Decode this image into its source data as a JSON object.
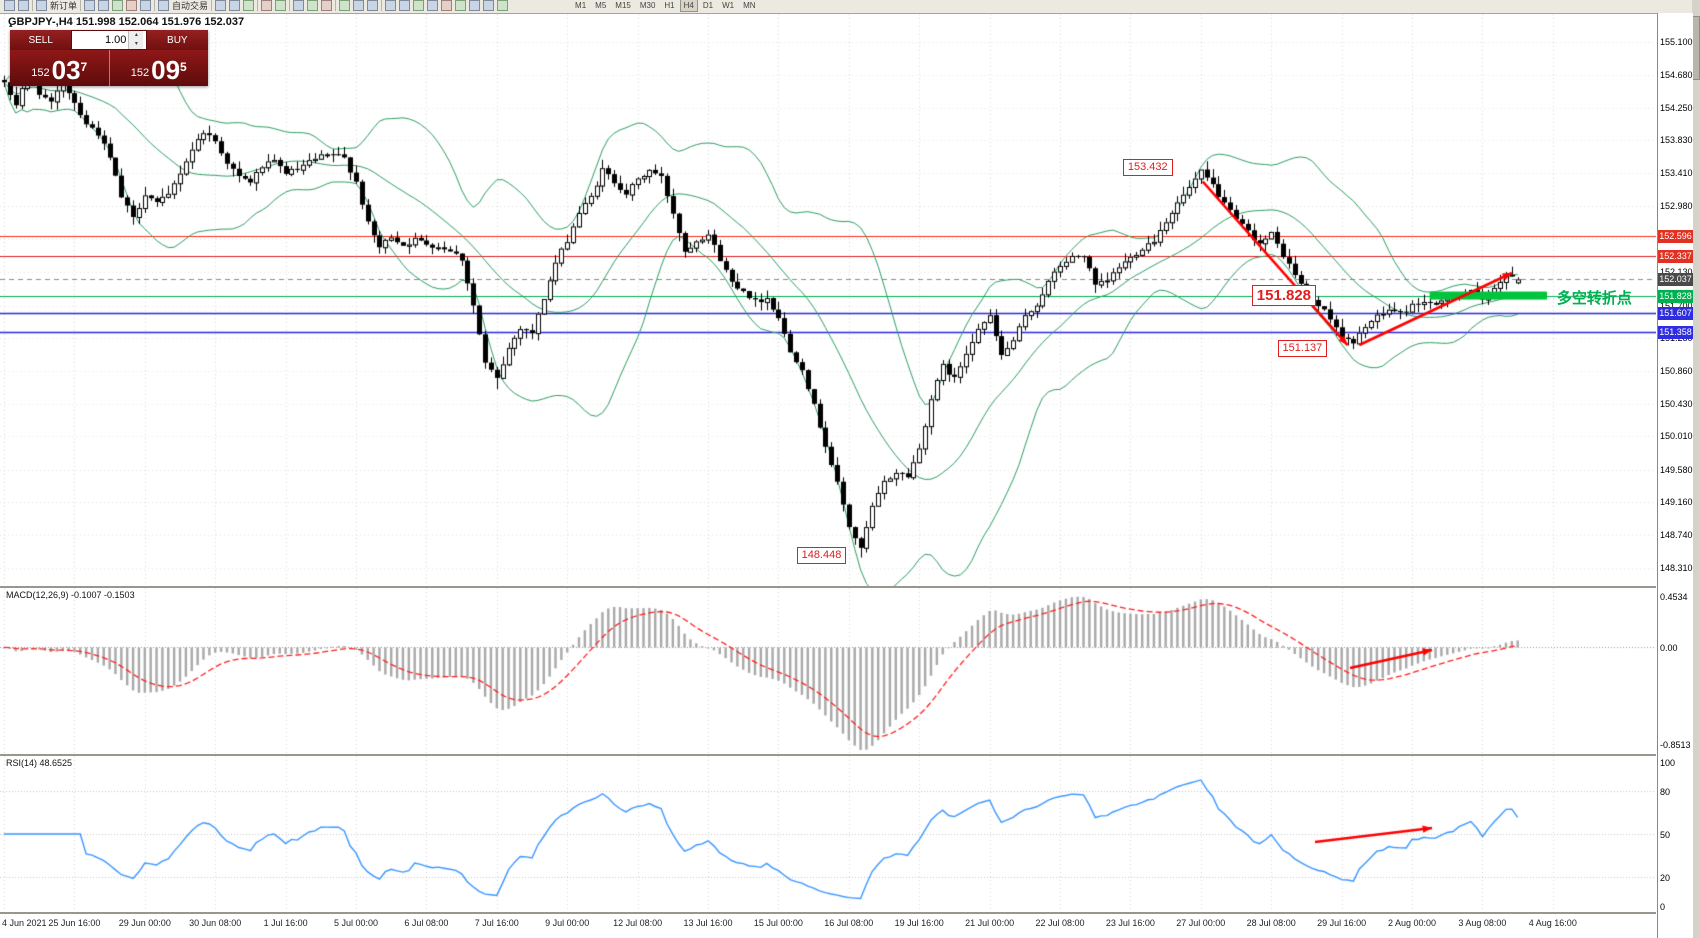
{
  "toolbar": {
    "items": [
      {
        "name": "new-chart-icon"
      },
      {
        "name": "chart-profiles-icon"
      },
      {
        "sep": true
      },
      {
        "name": "new-order-icon",
        "label": "新订单"
      },
      {
        "sep": true
      },
      {
        "name": "market-watch-icon"
      },
      {
        "name": "data-window-icon"
      },
      {
        "name": "navigator-icon"
      },
      {
        "name": "terminal-icon"
      },
      {
        "name": "strategy-tester-icon"
      },
      {
        "sep": true
      },
      {
        "name": "autotrading-icon",
        "label": "自动交易"
      },
      {
        "sep": true
      },
      {
        "name": "bar-chart-icon"
      },
      {
        "name": "candlestick-chart-icon"
      },
      {
        "name": "line-chart-icon"
      },
      {
        "sep": true
      },
      {
        "name": "zoom-in-icon"
      },
      {
        "name": "zoom-out-icon"
      },
      {
        "sep": true
      },
      {
        "name": "tile-windows-icon"
      },
      {
        "name": "auto-scroll-icon"
      },
      {
        "name": "chart-shift-icon"
      },
      {
        "sep": true
      },
      {
        "name": "indicators-icon"
      },
      {
        "name": "periods-icon"
      },
      {
        "name": "templates-icon"
      },
      {
        "sep": true
      },
      {
        "name": "cursor-icon"
      },
      {
        "name": "crosshair-icon"
      },
      {
        "name": "vertical-line-icon"
      },
      {
        "name": "horizontal-line-icon"
      },
      {
        "name": "trendline-icon"
      },
      {
        "name": "equidistant-channel-icon"
      },
      {
        "name": "fibonacci-icon"
      },
      {
        "name": "text-label-icon"
      },
      {
        "name": "arrows-icon"
      }
    ],
    "timeframes": [
      "M1",
      "M5",
      "M15",
      "M30",
      "H1",
      "H4",
      "D1",
      "W1",
      "MN"
    ],
    "active_timeframe": "H4"
  },
  "chart_header": "GBPJPY-,H4  151.998 152.064 151.976 152.037",
  "trade_panel": {
    "sell_label": "SELL",
    "buy_label": "BUY",
    "volume": "1.00",
    "spin_up": "▴",
    "spin_down": "▾",
    "collapse_glyph": "▴",
    "sell_prefix": "152",
    "sell_big": "03",
    "sell_sup": "7",
    "buy_prefix": "152",
    "buy_big": "09",
    "buy_sup": "5"
  },
  "annotations": {
    "swing_high": "153.432",
    "support_price": "151.828",
    "pullback_low": "151.137",
    "major_low": "148.448",
    "turning_label": "多空转折点"
  },
  "price_axis": {
    "ticks": [
      "155.100",
      "154.680",
      "154.250",
      "153.830",
      "153.410",
      "152.980",
      "152.560",
      "152.130",
      "151.700",
      "151.280",
      "150.860",
      "150.430",
      "150.010",
      "149.580",
      "149.160",
      "148.740",
      "148.310"
    ],
    "tags": [
      {
        "text": "152.596",
        "price": 152.596,
        "bg": "#e03222"
      },
      {
        "text": "152.337",
        "price": 152.337,
        "bg": "#e03222"
      },
      {
        "text": "152.037",
        "price": 152.037,
        "bg": "#4a4a4a"
      },
      {
        "text": "151.828",
        "price": 151.828,
        "bg": "#00b050"
      },
      {
        "text": "151.607",
        "price": 151.607,
        "bg": "#2e2ee0"
      },
      {
        "text": "151.358",
        "price": 151.358,
        "bg": "#2e2ee0"
      }
    ]
  },
  "hlines": [
    {
      "price": 152.596,
      "color": "#ff2a1a",
      "style": "solid",
      "width": 1
    },
    {
      "price": 152.337,
      "color": "#e02020",
      "style": "solid",
      "width": 1
    },
    {
      "price": 152.037,
      "color": "#8a8a8a",
      "style": "dash",
      "width": 1
    },
    {
      "price": 151.828,
      "color": "#00b050",
      "style": "solid",
      "width": 1
    },
    {
      "price": 151.607,
      "color": "#2a2ae0",
      "style": "solid",
      "width": 1.4
    },
    {
      "price": 151.358,
      "color": "#2a2ae0",
      "style": "solid",
      "width": 1.4
    }
  ],
  "macd": {
    "label": "MACD(12,26,9) -0.1007 -0.1503",
    "scale": [
      {
        "text": "0.4534",
        "value": 0.4534
      },
      {
        "text": "0.00",
        "value": 0
      },
      {
        "text": "-0.8513",
        "value": -0.8513
      }
    ]
  },
  "rsi": {
    "label": "RSI(14) 48.6525",
    "scale": [
      {
        "text": "100",
        "value": 100
      },
      {
        "text": "80",
        "value": 80
      },
      {
        "text": "50",
        "value": 50
      },
      {
        "text": "20",
        "value": 20
      },
      {
        "text": "0",
        "value": 0
      }
    ],
    "levels": [
      80,
      50,
      20
    ]
  },
  "time_axis": [
    "4 Jun 2021",
    "25 Jun 16:00",
    "29 Jun 00:00",
    "30 Jun 08:00",
    "1 Jul 16:00",
    "5 Jul 00:00",
    "6 Jul 08:00",
    "7 Jul 16:00",
    "9 Jul 00:00",
    "12 Jul 08:00",
    "13 Jul 16:00",
    "15 Jul 00:00",
    "16 Jul 08:00",
    "19 Jul 16:00",
    "21 Jul 00:00",
    "22 Jul 08:00",
    "23 Jul 16:00",
    "27 Jul 00:00",
    "28 Jul 08:00",
    "29 Jul 16:00",
    "2 Aug 00:00",
    "3 Aug 08:00",
    "4 Aug 16:00"
  ],
  "chart_data": {
    "type": "candlestick",
    "symbol": "GBPJPY-",
    "timeframe": "H4",
    "ohlc_current": {
      "open": 151.998,
      "high": 152.064,
      "low": 151.976,
      "close": 152.037
    },
    "bid": 152.037,
    "ask": 152.095,
    "num_candles": 259,
    "price_axis_range": [
      148.31,
      155.1
    ],
    "close_waypoints": [
      [
        0,
        154.55
      ],
      [
        2,
        154.3
      ],
      [
        4,
        154.72
      ],
      [
        6,
        154.45
      ],
      [
        8,
        154.3
      ],
      [
        10,
        154.6
      ],
      [
        12,
        154.32
      ],
      [
        14,
        154.05
      ],
      [
        16,
        153.92
      ],
      [
        18,
        153.6
      ],
      [
        20,
        153.1
      ],
      [
        22,
        152.82
      ],
      [
        24,
        153.15
      ],
      [
        26,
        153.02
      ],
      [
        28,
        153.12
      ],
      [
        30,
        153.42
      ],
      [
        32,
        153.72
      ],
      [
        34,
        153.95
      ],
      [
        36,
        153.82
      ],
      [
        38,
        153.55
      ],
      [
        40,
        153.35
      ],
      [
        42,
        153.3
      ],
      [
        44,
        153.5
      ],
      [
        46,
        153.55
      ],
      [
        48,
        153.42
      ],
      [
        50,
        153.45
      ],
      [
        52,
        153.55
      ],
      [
        54,
        153.62
      ],
      [
        56,
        153.65
      ],
      [
        58,
        153.6
      ],
      [
        60,
        153.3
      ],
      [
        62,
        152.75
      ],
      [
        64,
        152.45
      ],
      [
        66,
        152.6
      ],
      [
        68,
        152.48
      ],
      [
        70,
        152.55
      ],
      [
        72,
        152.5
      ],
      [
        74,
        152.46
      ],
      [
        76,
        152.42
      ],
      [
        78,
        152.3
      ],
      [
        80,
        151.7
      ],
      [
        82,
        150.95
      ],
      [
        84,
        150.75
      ],
      [
        86,
        151.15
      ],
      [
        88,
        151.42
      ],
      [
        90,
        151.35
      ],
      [
        92,
        151.8
      ],
      [
        94,
        152.25
      ],
      [
        96,
        152.55
      ],
      [
        98,
        152.9
      ],
      [
        100,
        153.1
      ],
      [
        102,
        153.45
      ],
      [
        104,
        153.3
      ],
      [
        106,
        153.15
      ],
      [
        108,
        153.32
      ],
      [
        110,
        153.45
      ],
      [
        112,
        153.35
      ],
      [
        114,
        152.9
      ],
      [
        116,
        152.4
      ],
      [
        118,
        152.55
      ],
      [
        120,
        152.62
      ],
      [
        122,
        152.3
      ],
      [
        124,
        152.0
      ],
      [
        126,
        151.9
      ],
      [
        128,
        151.75
      ],
      [
        130,
        151.8
      ],
      [
        132,
        151.55
      ],
      [
        134,
        151.1
      ],
      [
        136,
        150.9
      ],
      [
        138,
        150.4
      ],
      [
        140,
        149.9
      ],
      [
        142,
        149.4
      ],
      [
        144,
        148.85
      ],
      [
        146,
        148.55
      ],
      [
        148,
        149.1
      ],
      [
        150,
        149.42
      ],
      [
        152,
        149.55
      ],
      [
        154,
        149.5
      ],
      [
        156,
        149.85
      ],
      [
        158,
        150.5
      ],
      [
        160,
        150.92
      ],
      [
        162,
        150.75
      ],
      [
        164,
        151.1
      ],
      [
        166,
        151.42
      ],
      [
        168,
        151.55
      ],
      [
        170,
        151.05
      ],
      [
        172,
        151.25
      ],
      [
        174,
        151.55
      ],
      [
        176,
        151.72
      ],
      [
        178,
        152.0
      ],
      [
        180,
        152.22
      ],
      [
        182,
        152.32
      ],
      [
        184,
        152.35
      ],
      [
        186,
        151.95
      ],
      [
        188,
        152.02
      ],
      [
        190,
        152.2
      ],
      [
        192,
        152.32
      ],
      [
        194,
        152.45
      ],
      [
        196,
        152.55
      ],
      [
        198,
        152.8
      ],
      [
        200,
        153.02
      ],
      [
        202,
        153.22
      ],
      [
        204,
        153.42
      ],
      [
        206,
        153.25
      ],
      [
        208,
        153.0
      ],
      [
        210,
        152.8
      ],
      [
        212,
        152.65
      ],
      [
        214,
        152.5
      ],
      [
        216,
        152.62
      ],
      [
        218,
        152.35
      ],
      [
        220,
        152.1
      ],
      [
        222,
        151.85
      ],
      [
        224,
        151.7
      ],
      [
        226,
        151.55
      ],
      [
        228,
        151.3
      ],
      [
        230,
        151.2
      ],
      [
        232,
        151.45
      ],
      [
        234,
        151.55
      ],
      [
        236,
        151.65
      ],
      [
        238,
        151.6
      ],
      [
        240,
        151.7
      ],
      [
        242,
        151.76
      ],
      [
        244,
        151.7
      ],
      [
        246,
        151.8
      ],
      [
        248,
        151.86
      ],
      [
        250,
        151.9
      ],
      [
        252,
        151.75
      ],
      [
        254,
        151.95
      ],
      [
        256,
        152.1
      ],
      [
        258,
        152.04
      ]
    ],
    "pinned_extremes": [
      {
        "i": 84,
        "low": 150.62
      },
      {
        "i": 146,
        "low": 148.448
      },
      {
        "i": 204,
        "high": 153.432
      },
      {
        "i": 230,
        "low": 151.137
      }
    ],
    "last_candle": {
      "i": 258,
      "o": 151.998,
      "h": 152.064,
      "l": 151.976,
      "c": 152.037
    },
    "key_points": {
      "swing_high": 153.432,
      "pullback_low": 151.137,
      "major_low": 148.448,
      "support": 151.828
    },
    "support_zone": {
      "price": 151.828,
      "from_index": 243,
      "to_index": 263
    },
    "indicators": {
      "bollinger": {
        "period": 20,
        "deviation": 2
      },
      "macd": {
        "fast": 12,
        "slow": 26,
        "signal": 9,
        "current_macd": -0.1007,
        "current_signal": -0.1503,
        "scale_max": 0.4534,
        "scale_min": -0.8513
      },
      "rsi": {
        "period": 14,
        "current": 48.6525
      }
    }
  }
}
